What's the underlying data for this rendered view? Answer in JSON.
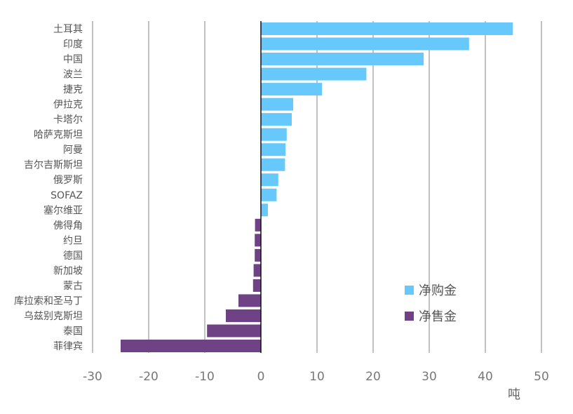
{
  "chart_data": {
    "type": "bar",
    "orientation": "horizontal",
    "categories": [
      "土耳其",
      "印度",
      "中国",
      "波兰",
      "捷克",
      "伊拉克",
      "卡塔尔",
      "哈萨克斯坦",
      "阿曼",
      "吉尔吉斯斯坦",
      "俄罗斯",
      "SOFAZ",
      "塞尔维亚",
      "佛得角",
      "约旦",
      "德国",
      "新加坡",
      "蒙古",
      "库拉索和圣马丁",
      "乌兹别克斯坦",
      "泰国",
      "菲律宾"
    ],
    "values": [
      44.9,
      37.1,
      29.0,
      18.8,
      10.9,
      5.75,
      5.5,
      4.6,
      4.4,
      4.3,
      3.1,
      2.8,
      1.25,
      -1.05,
      -1.1,
      -1.1,
      -1.3,
      -1.4,
      -4.0,
      -6.25,
      -9.6,
      -25.0
    ],
    "series": [
      {
        "name": "净购金",
        "color": "#66c8fb"
      },
      {
        "name": "净售金",
        "color": "#6f4185"
      }
    ],
    "xlabel": "吨",
    "xlim": [
      -30,
      50
    ],
    "xticks": [
      -30,
      -20,
      -10,
      0,
      10,
      20,
      30,
      40,
      50
    ],
    "grid": true,
    "legend": "bottom-right"
  }
}
